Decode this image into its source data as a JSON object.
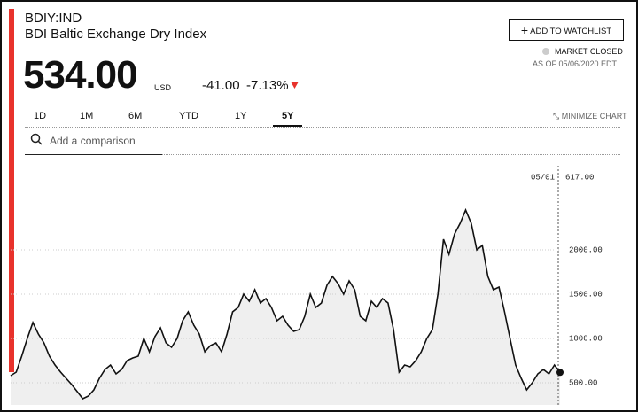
{
  "header": {
    "ticker": "BDIY:IND",
    "name": "BDI Baltic Exchange Dry Index",
    "price": "534.00",
    "currency": "USD",
    "change": "-41.00",
    "change_pct": "-7.13%",
    "watchlist_button": "ADD TO WATCHLIST",
    "market_status": "MARKET CLOSED",
    "as_of": "AS OF 05/06/2020 EDT"
  },
  "tabs": [
    "1D",
    "1M",
    "6M",
    "YTD",
    "1Y",
    "5Y"
  ],
  "minimize": "MINIMIZE CHART",
  "search_placeholder": "Add a comparison",
  "chart_data": {
    "type": "line",
    "color": "#111111",
    "fill": "#efefef",
    "crosshair_date": "05/01",
    "crosshair_label": "617.00",
    "ylim": [
      250,
      2950
    ],
    "yticks": [
      {
        "value": 500,
        "label": "500.00"
      },
      {
        "value": 1000,
        "label": "1000.00"
      },
      {
        "value": 1500,
        "label": "1500.00"
      },
      {
        "value": 2000,
        "label": "2000.00"
      }
    ],
    "grid": true,
    "values": [
      580,
      620,
      800,
      1000,
      1180,
      1050,
      950,
      800,
      700,
      620,
      550,
      480,
      400,
      320,
      350,
      420,
      550,
      650,
      700,
      600,
      650,
      750,
      780,
      800,
      1000,
      850,
      1020,
      1120,
      950,
      900,
      1000,
      1200,
      1300,
      1150,
      1050,
      850,
      920,
      950,
      850,
      1050,
      1300,
      1350,
      1500,
      1420,
      1550,
      1400,
      1450,
      1350,
      1200,
      1250,
      1150,
      1080,
      1100,
      1250,
      1500,
      1350,
      1400,
      1600,
      1700,
      1620,
      1500,
      1650,
      1550,
      1250,
      1200,
      1420,
      1350,
      1450,
      1400,
      1100,
      620,
      700,
      680,
      750,
      850,
      1000,
      1100,
      1500,
      2120,
      1950,
      2180,
      2300,
      2450,
      2300,
      2000,
      2050,
      1700,
      1550,
      1580,
      1300,
      1000,
      700,
      550,
      420,
      500,
      600,
      650,
      600,
      700,
      617
    ]
  }
}
